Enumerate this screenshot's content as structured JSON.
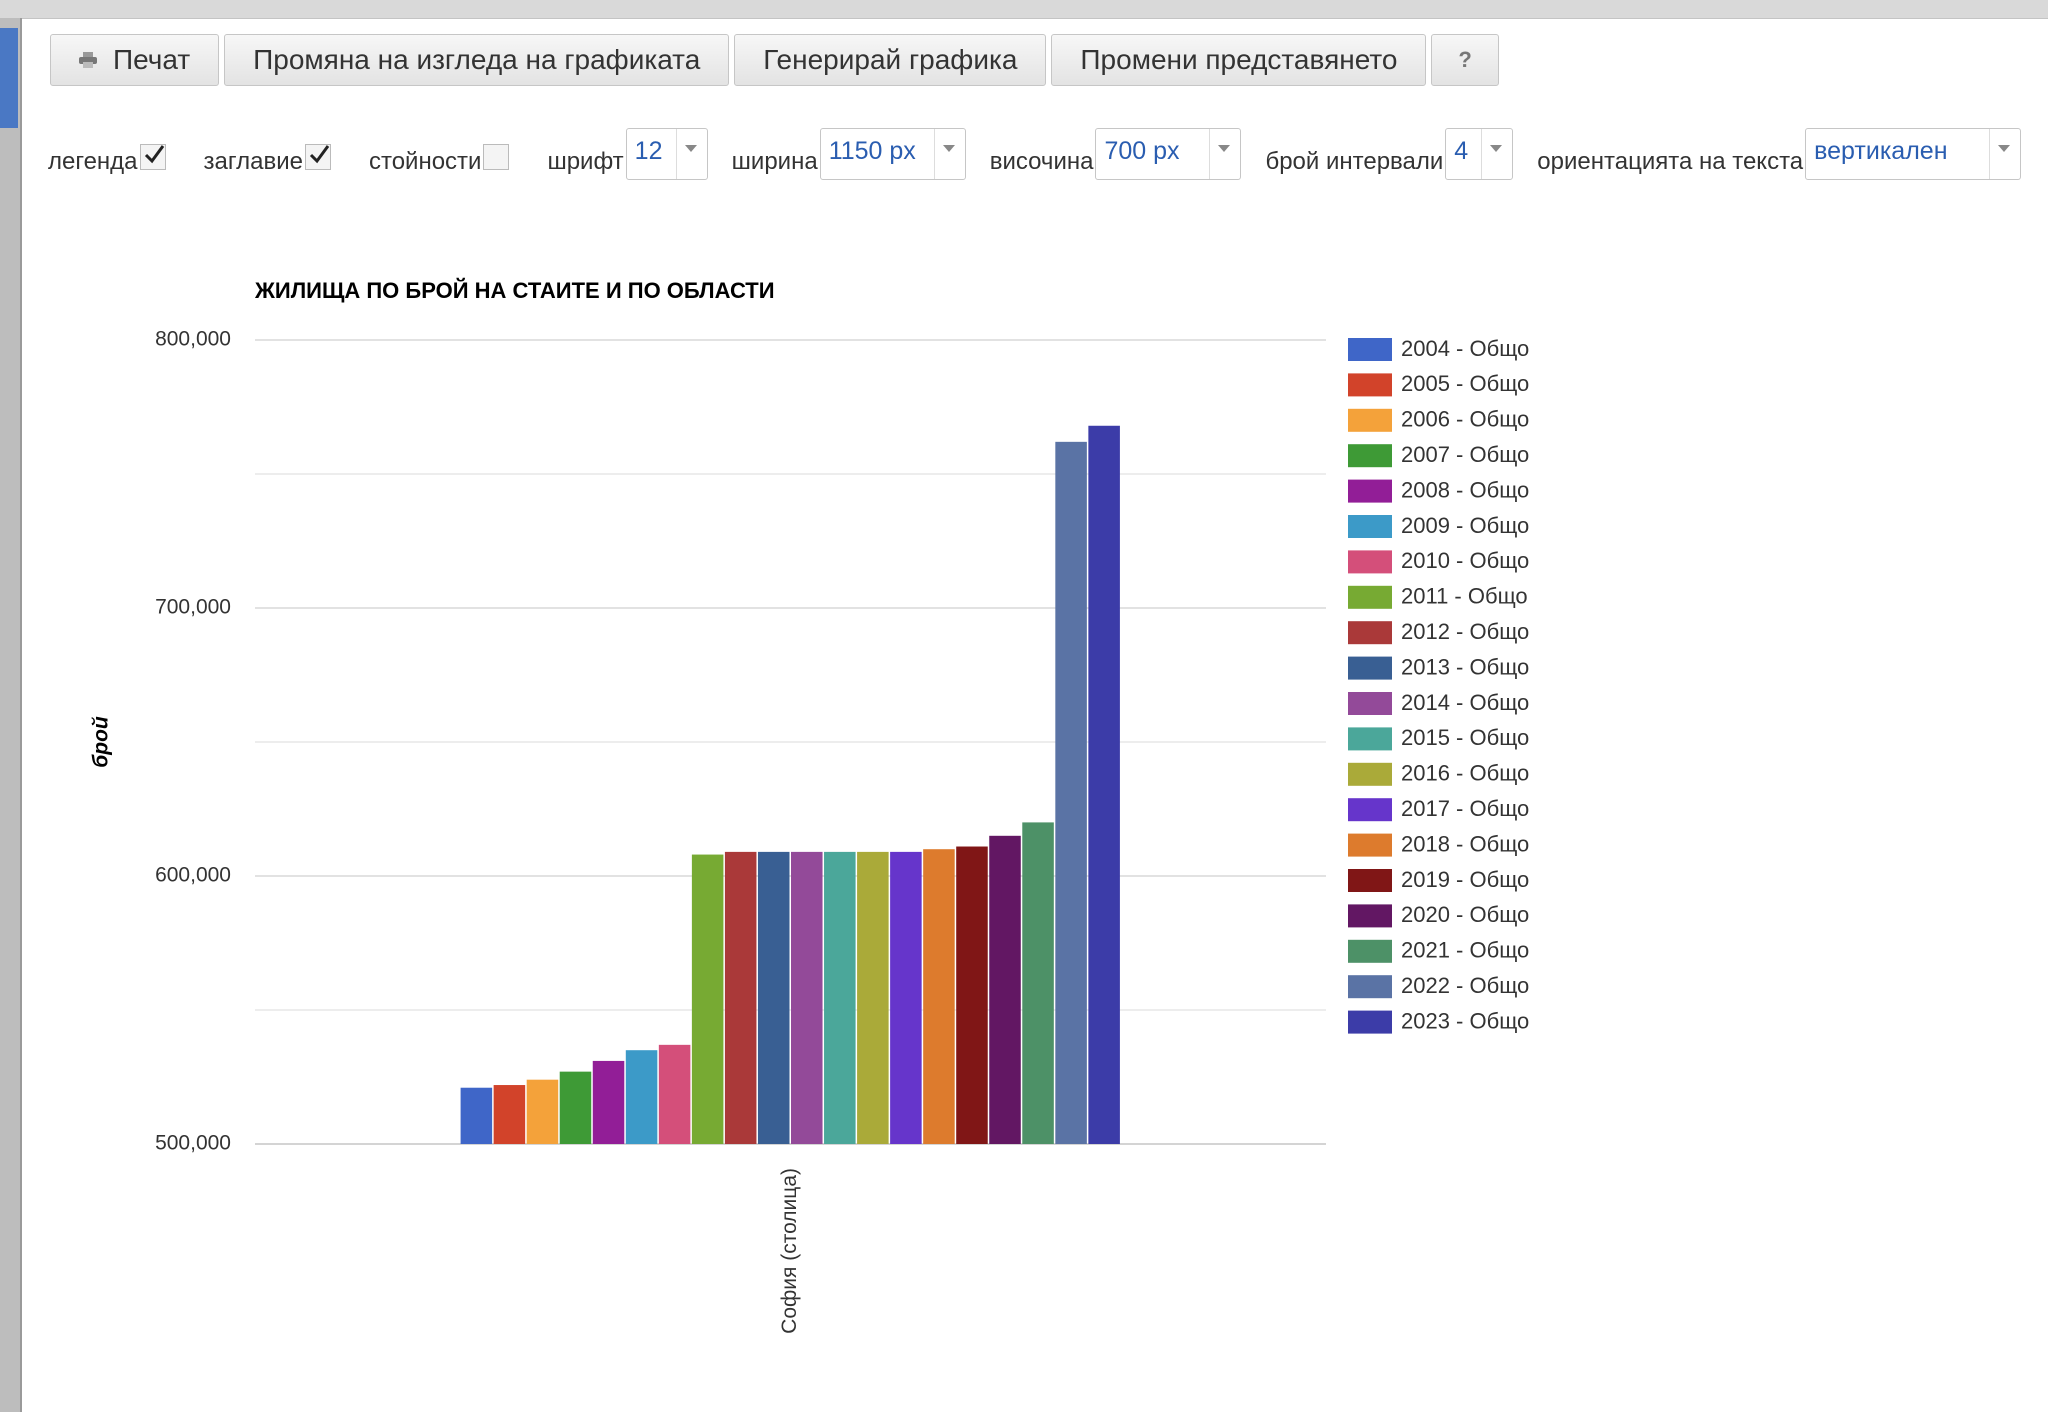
{
  "toolbar": {
    "buttons": [
      "Печат",
      "Промяна на изгледа на графиката",
      "Генерирай графика",
      "Промени представянето",
      "?"
    ]
  },
  "controls": {
    "legend": {
      "label": "легенда",
      "checked": true
    },
    "title": {
      "label": "заглавие",
      "checked": true
    },
    "values": {
      "label": "стойности",
      "checked": false
    },
    "font": {
      "label": "шрифт",
      "value": "12"
    },
    "width": {
      "label": "ширина",
      "value": "1150 px"
    },
    "height": {
      "label": "височина",
      "value": "700 px"
    },
    "intervals": {
      "label": "брой интервали",
      "value": "4"
    },
    "orientation": {
      "label": "ориентацията на текста",
      "value": "вертикален"
    }
  },
  "chart_data": {
    "type": "bar",
    "title": "ЖИЛИЩА ПО БРОЙ НА СТАИТЕ И ПО ОБЛАСТИ",
    "y_label": "брой",
    "categories": [
      "София (столица)"
    ],
    "series": [
      {
        "name": "2004 - Общо",
        "color": "#3f66c8",
        "values": [
          521000
        ]
      },
      {
        "name": "2005 - Общо",
        "color": "#d2432a",
        "values": [
          522000
        ]
      },
      {
        "name": "2006 - Общо",
        "color": "#f4a23a",
        "values": [
          524000
        ]
      },
      {
        "name": "2007 - Общо",
        "color": "#3e9a36",
        "values": [
          527000
        ]
      },
      {
        "name": "2008 - Общо",
        "color": "#921e97",
        "values": [
          531000
        ]
      },
      {
        "name": "2009 - Общо",
        "color": "#3c9ac8",
        "values": [
          535000
        ]
      },
      {
        "name": "2010 - Общо",
        "color": "#d44f7a",
        "values": [
          537000
        ]
      },
      {
        "name": "2011 - Общо",
        "color": "#77aa33",
        "values": [
          608000
        ]
      },
      {
        "name": "2012 - Общо",
        "color": "#aa3939",
        "values": [
          609000
        ]
      },
      {
        "name": "2013 - Общо",
        "color": "#395f93",
        "values": [
          609000
        ]
      },
      {
        "name": "2014 - Общо",
        "color": "#934a99",
        "values": [
          609000
        ]
      },
      {
        "name": "2015 - Общо",
        "color": "#4ba79a",
        "values": [
          609000
        ]
      },
      {
        "name": "2016 - Общо",
        "color": "#aaaa39",
        "values": [
          609000
        ]
      },
      {
        "name": "2017 - Общо",
        "color": "#6635cb",
        "values": [
          609000
        ]
      },
      {
        "name": "2018 - Общо",
        "color": "#dd7b2d",
        "values": [
          610000
        ]
      },
      {
        "name": "2019 - Общо",
        "color": "#801616",
        "values": [
          611000
        ]
      },
      {
        "name": "2020 - Общо",
        "color": "#621763",
        "values": [
          615000
        ]
      },
      {
        "name": "2021 - Общо",
        "color": "#4d9167",
        "values": [
          620000
        ]
      },
      {
        "name": "2022 - Общо",
        "color": "#5a73a5",
        "values": [
          762000
        ]
      },
      {
        "name": "2023 - Общо",
        "color": "#3c3ca8",
        "values": [
          768000
        ]
      }
    ],
    "ylim": [
      500000,
      800000
    ],
    "yticks": [
      {
        "value": 500000,
        "label": "500,000"
      },
      {
        "value": 600000,
        "label": "600,000"
      },
      {
        "value": 700000,
        "label": "700,000"
      },
      {
        "value": 800000,
        "label": "800,000"
      }
    ],
    "minor_yticks": [
      550000,
      650000,
      750000
    ],
    "grid": true,
    "legend": "right"
  }
}
